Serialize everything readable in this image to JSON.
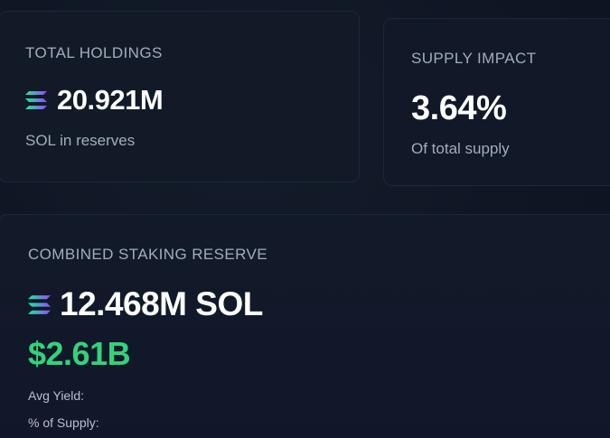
{
  "holdings": {
    "title": "TOTAL HOLDINGS",
    "icon": "solana-logo-icon",
    "amount": "20.921M",
    "caption": "SOL in reserves"
  },
  "supply": {
    "title": "SUPPLY IMPACT",
    "value": "3.64%",
    "caption": "Of total supply"
  },
  "staking": {
    "title": "COMBINED STAKING RESERVE",
    "icon": "solana-logo-icon",
    "amount": "12.468M SOL",
    "usd_value": "$2.61B",
    "avg_yield_label": "Avg Yield:",
    "pct_supply_label": "% of Supply:"
  },
  "colors": {
    "background": "#0f1523",
    "card": "#111827",
    "accent_green": "#34d37a",
    "muted_text": "#a3acbd",
    "solana_gradient": [
      "#14f195",
      "#9945ff"
    ]
  }
}
